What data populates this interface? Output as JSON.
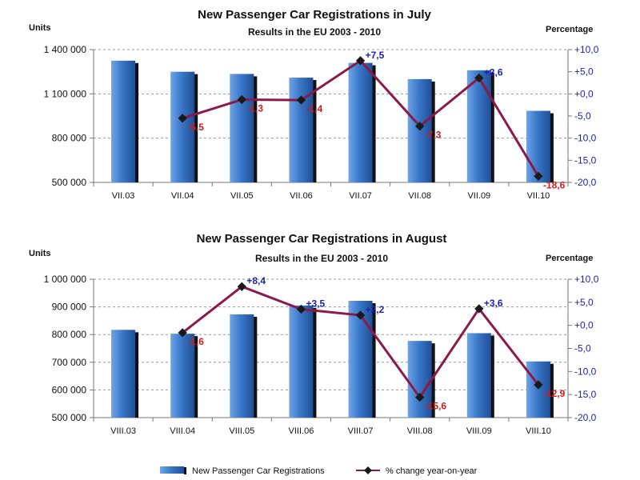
{
  "chart_data": [
    {
      "type": "bar",
      "title": "New Passenger Car Registrations in July",
      "subtitle": "Results in the EU 2003 - 2010",
      "ylabel": "Units",
      "y2label": "Percentage",
      "categories": [
        "VII.03",
        "VII.04",
        "VII.05",
        "VII.06",
        "VII.07",
        "VII.08",
        "VII.09",
        "VII.10"
      ],
      "ylim": [
        500000,
        1400000
      ],
      "yticks": [
        500000,
        800000,
        1100000,
        1400000
      ],
      "ytick_labels": [
        "500 000",
        "800 000",
        "1 100 000",
        "1 400 000"
      ],
      "y2lim": [
        -20,
        10
      ],
      "y2ticks": [
        -20,
        -15,
        -10,
        -5,
        0,
        5,
        10
      ],
      "y2tick_labels": [
        "-20,0",
        "-15,0",
        "-10,0",
        "-5,0",
        "+0,0",
        "+5,0",
        "+10,0"
      ],
      "grid": true,
      "series": [
        {
          "name": "New Passenger Car Registrations",
          "axis": "left",
          "kind": "bar",
          "values": [
            1325000,
            1250000,
            1235000,
            1210000,
            1310000,
            1200000,
            1260000,
            985000
          ]
        },
        {
          "name": "% change year-on-year",
          "axis": "right",
          "kind": "line",
          "values": [
            null,
            -5.5,
            -1.3,
            -1.4,
            7.5,
            -7.3,
            3.6,
            -18.6
          ],
          "labels": [
            "",
            "-5,5",
            "-1,3",
            "-1,4",
            "+7,5",
            "-7,3",
            "+3,6",
            "-18,6"
          ]
        }
      ]
    },
    {
      "type": "bar",
      "title": "New Passenger Car Registrations in August",
      "subtitle": "Results in the EU 2003 - 2010",
      "ylabel": "Units",
      "y2label": "Percentage",
      "categories": [
        "VIII.03",
        "VIII.04",
        "VIII.05",
        "VIII.06",
        "VIII.07",
        "VIII.08",
        "VIII.09",
        "VIII.10"
      ],
      "ylim": [
        500000,
        1000000
      ],
      "yticks": [
        500000,
        600000,
        700000,
        800000,
        900000,
        1000000
      ],
      "ytick_labels": [
        "500 000",
        "600 000",
        "700 000",
        "800 000",
        "900 000",
        "1 000 000"
      ],
      "y2lim": [
        -20,
        10
      ],
      "y2ticks": [
        -20,
        -15,
        -10,
        -5,
        0,
        5,
        10
      ],
      "y2tick_labels": [
        "-20,0",
        "-15,0",
        "-10,0",
        "-5,0",
        "+0,0",
        "+5,0",
        "+10,0"
      ],
      "grid": true,
      "series": [
        {
          "name": "New Passenger Car Registrations",
          "axis": "left",
          "kind": "bar",
          "values": [
            817000,
            803000,
            873000,
            905000,
            922000,
            777000,
            805000,
            703000
          ]
        },
        {
          "name": "% change year-on-year",
          "axis": "right",
          "kind": "line",
          "values": [
            null,
            -1.6,
            8.4,
            3.5,
            2.2,
            -15.6,
            3.6,
            -12.9
          ],
          "labels": [
            "",
            "-1,6",
            "+8,4",
            "+3,5",
            "+2,2",
            "-15,6",
            "+3,6",
            "-12,9"
          ]
        }
      ]
    }
  ],
  "legend": {
    "bar_label": "New Passenger Car Registrations",
    "line_label": "% change year-on-year"
  },
  "colors": {
    "bar": "#3a78c8",
    "bar_shadow": "#111111",
    "line": "#8b1a4a",
    "marker": "#1a1a1a",
    "positive_label": "#1f1fb4",
    "negative_label": "#d61a1a",
    "right_axis": "#1f1fb4",
    "grid": "#9a9a9a"
  }
}
